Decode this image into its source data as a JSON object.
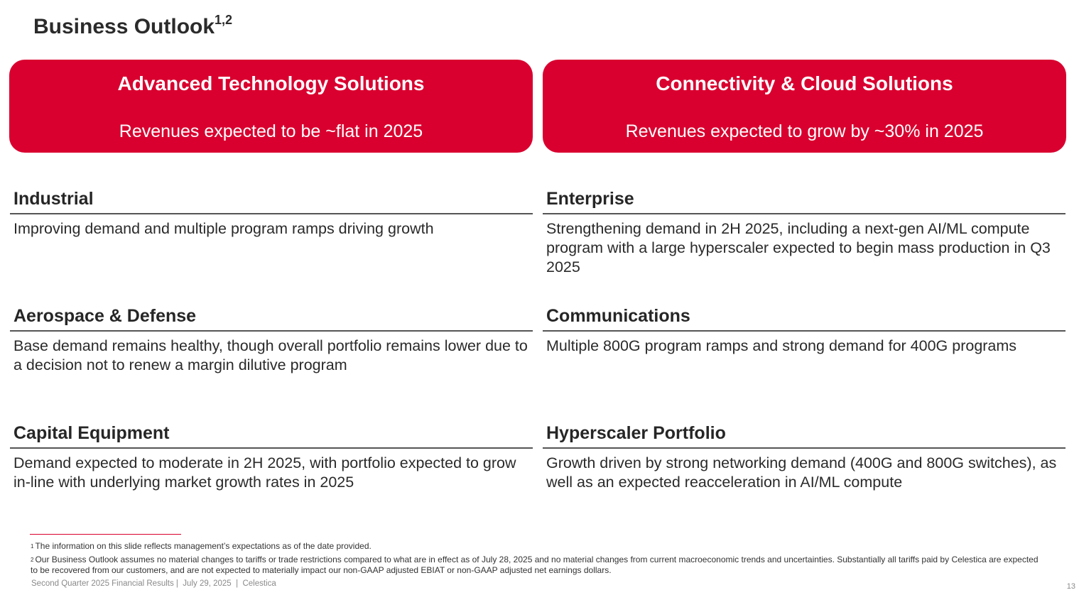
{
  "title": {
    "text": "Business Outlook",
    "superscript": "1,2"
  },
  "banners": [
    {
      "title": "Advanced Technology Solutions",
      "subtitle": "Revenues expected to be ~flat in 2025"
    },
    {
      "title": "Connectivity & Cloud Solutions",
      "subtitle": "Revenues expected to grow by ~30% in 2025"
    }
  ],
  "left_sections": [
    {
      "heading": "Industrial",
      "body": "Improving demand and multiple program ramps driving growth"
    },
    {
      "heading": "Aerospace & Defense",
      "body": "Base demand remains healthy, though overall portfolio remains lower due to a decision not to renew a margin dilutive program"
    },
    {
      "heading": "Capital Equipment",
      "body": "Demand expected to moderate in 2H 2025, with portfolio expected to grow in-line with underlying market growth rates in 2025"
    }
  ],
  "right_sections": [
    {
      "heading": "Enterprise",
      "body": "Strengthening demand in 2H 2025, including a next-gen AI/ML compute program with a large hyperscaler expected to begin mass production in Q3 2025"
    },
    {
      "heading": "Communications",
      "body": "Multiple 800G program ramps and strong demand for 400G programs"
    },
    {
      "heading": "Hyperscaler Portfolio",
      "body": "Growth driven by strong networking demand (400G and 800G switches), as well as an expected reacceleration in AI/ML compute"
    }
  ],
  "footnotes": [
    {
      "marker": "1",
      "text": "The information on this slide reflects management’s expectations as of the date provided."
    },
    {
      "marker": "2",
      "text": "Our Business Outlook assumes no material changes to tariffs or trade restrictions compared to what are in effect as of July 28, 2025 and no material changes from current macroeconomic trends and uncertainties. Substantially all tariffs paid by Celestica are expected to be recovered from our customers, and are not expected to materially impact our non-GAAP adjusted EBIAT or non-GAAP adjusted net earnings dollars."
    }
  ],
  "footer": {
    "text": "Second Quarter 2025 Financial Results |  July 29, 2025  |  Celestica",
    "page_number": "13"
  },
  "colors": {
    "accent": "#d9002f",
    "heading_rule": "#555555"
  }
}
